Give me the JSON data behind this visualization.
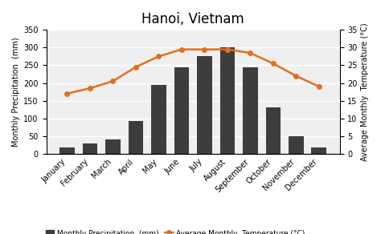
{
  "title": "Hanoi, Vietnam",
  "months": [
    "January",
    "February",
    "March",
    "April",
    "May",
    "June",
    "July",
    "August",
    "September",
    "October",
    "November",
    "December"
  ],
  "precipitation": [
    18,
    28,
    40,
    93,
    195,
    245,
    275,
    302,
    245,
    130,
    50,
    18
  ],
  "temperature": [
    17,
    18.5,
    20.5,
    24.5,
    27.5,
    29.5,
    29.5,
    29.5,
    28.5,
    25.5,
    22,
    19
  ],
  "bar_color": "#3d3d3d",
  "line_color": "#e07020",
  "marker_color": "#e07020",
  "background_color": "#efefef",
  "grid_color": "#ffffff",
  "ylabel_left": "Monthly Precipitation  (mm)",
  "ylabel_right": "Average Monthly  Temperature (°C)",
  "ylim_left": [
    0,
    350
  ],
  "ylim_right": [
    0,
    35
  ],
  "yticks_left": [
    0,
    50,
    100,
    150,
    200,
    250,
    300,
    350
  ],
  "yticks_right": [
    0,
    5,
    10,
    15,
    20,
    25,
    30,
    35
  ],
  "legend_precip": "Monthly Precipitation  (mm)",
  "legend_temp": "Average Monthly  Temperature (°C)",
  "title_fontsize": 12,
  "axis_label_fontsize": 7,
  "tick_fontsize": 7
}
